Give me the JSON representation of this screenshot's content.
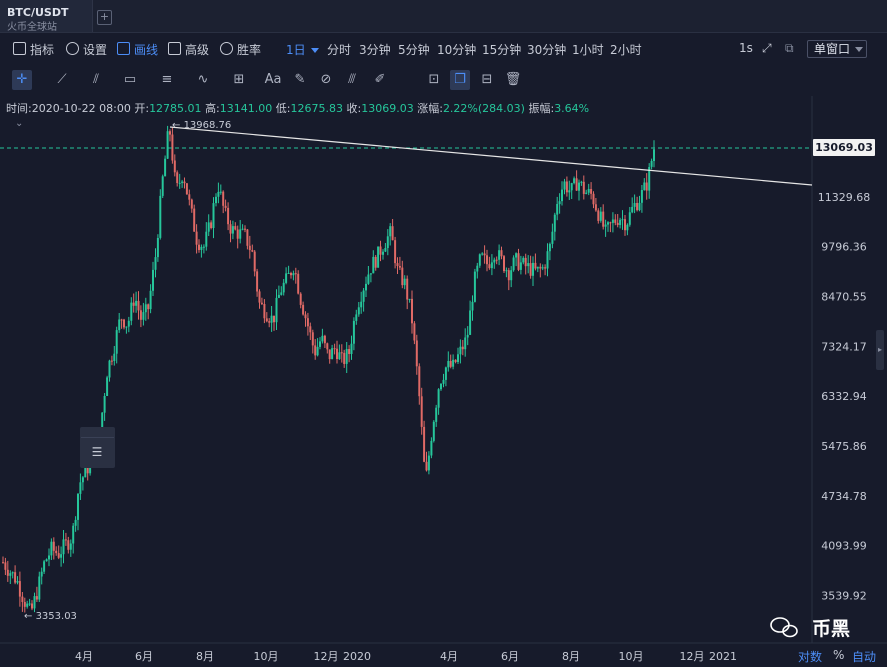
{
  "tab": {
    "title": "BTC/USDT",
    "subtitle": "火币全球站"
  },
  "toolbar": {
    "indicators": "指标",
    "settings": "设置",
    "drawing": "画线",
    "advanced": "高级",
    "win_rate": "胜率",
    "periods": [
      "1日",
      "分时",
      "3分钟",
      "5分钟",
      "10分钟",
      "15分钟",
      "30分钟",
      "1小时",
      "2小时"
    ],
    "active_period": "1日",
    "interval": "1s",
    "window_mode": "单窗口"
  },
  "ohlc": {
    "time_label": "时间:",
    "time": "2020-10-22 08:00",
    "open_label": "开:",
    "open": "12785.01",
    "high_label": "高:",
    "high": "13141.00",
    "low_label": "低:",
    "low": "12675.83",
    "close_label": "收:",
    "close": "13069.03",
    "change_label": "涨幅:",
    "change": "2.22%(284.03)",
    "amplitude_label": "振幅:",
    "amplitude": "3.64%"
  },
  "chart_data": {
    "type": "candlestick",
    "y_scale": "log",
    "y_ticks": [
      "11329.68",
      "9796.36",
      "8470.55",
      "7324.17",
      "6332.94",
      "5475.86",
      "4734.78",
      "4093.99",
      "3539.92"
    ],
    "x_ticks": [
      "4月",
      "6月",
      "8月",
      "10月",
      "12月",
      "2020",
      "4月",
      "6月",
      "8月",
      "10月",
      "12月",
      "2021"
    ],
    "last_price": "13069.03",
    "annotations": {
      "max_label": "13968.76",
      "min_label": "3353.03"
    },
    "path_points": [
      [
        0,
        3900
      ],
      [
        2,
        3700
      ],
      [
        3,
        3500
      ],
      [
        4,
        3353
      ],
      [
        5,
        3600
      ],
      [
        6,
        3900
      ],
      [
        7,
        4050
      ],
      [
        8,
        4000
      ],
      [
        9,
        4100
      ],
      [
        10,
        4200
      ],
      [
        11,
        4900
      ],
      [
        12,
        5100
      ],
      [
        13,
        5300
      ],
      [
        14,
        5700
      ],
      [
        15,
        6800
      ],
      [
        16,
        7300
      ],
      [
        17,
        8000
      ],
      [
        18,
        7800
      ],
      [
        19,
        8500
      ],
      [
        20,
        7900
      ],
      [
        21,
        8200
      ],
      [
        22,
        9500
      ],
      [
        23,
        11800
      ],
      [
        24,
        13968
      ],
      [
        25,
        11500
      ],
      [
        26,
        12200
      ],
      [
        27,
        11000
      ],
      [
        28,
        10000
      ],
      [
        29,
        9800
      ],
      [
        30,
        10500
      ],
      [
        31,
        11800
      ],
      [
        32,
        10800
      ],
      [
        33,
        10300
      ],
      [
        34,
        10200
      ],
      [
        35,
        10100
      ],
      [
        36,
        9600
      ],
      [
        37,
        8300
      ],
      [
        38,
        8100
      ],
      [
        39,
        7900
      ],
      [
        40,
        8600
      ],
      [
        41,
        8900
      ],
      [
        42,
        9300
      ],
      [
        43,
        8400
      ],
      [
        44,
        7800
      ],
      [
        45,
        7200
      ],
      [
        46,
        7500
      ],
      [
        47,
        7100
      ],
      [
        48,
        7300
      ],
      [
        49,
        7000
      ],
      [
        50,
        7200
      ],
      [
        51,
        8200
      ],
      [
        52,
        8700
      ],
      [
        53,
        9200
      ],
      [
        54,
        9500
      ],
      [
        55,
        9900
      ],
      [
        56,
        10200
      ],
      [
        57,
        9100
      ],
      [
        58,
        8800
      ],
      [
        59,
        8000
      ],
      [
        60,
        6500
      ],
      [
        61,
        4900
      ],
      [
        62,
        5800
      ],
      [
        63,
        6600
      ],
      [
        64,
        6900
      ],
      [
        65,
        6900
      ],
      [
        66,
        7200
      ],
      [
        67,
        7500
      ],
      [
        68,
        8800
      ],
      [
        69,
        9500
      ],
      [
        70,
        9300
      ],
      [
        71,
        9700
      ],
      [
        72,
        9400
      ],
      [
        73,
        9100
      ],
      [
        74,
        9400
      ],
      [
        75,
        9300
      ],
      [
        76,
        9200
      ],
      [
        77,
        9100
      ],
      [
        78,
        9200
      ],
      [
        79,
        9800
      ],
      [
        80,
        11200
      ],
      [
        81,
        11800
      ],
      [
        82,
        11500
      ],
      [
        83,
        11900
      ],
      [
        84,
        11500
      ],
      [
        85,
        11400
      ],
      [
        86,
        10800
      ],
      [
        87,
        10200
      ],
      [
        88,
        10500
      ],
      [
        89,
        10700
      ],
      [
        90,
        10500
      ],
      [
        91,
        11000
      ],
      [
        92,
        11300
      ],
      [
        93,
        11800
      ],
      [
        94,
        13069
      ]
    ]
  },
  "footer": {
    "log": "对数",
    "percent": "%",
    "auto": "自动"
  },
  "watermark": {
    "text": "币黑"
  }
}
